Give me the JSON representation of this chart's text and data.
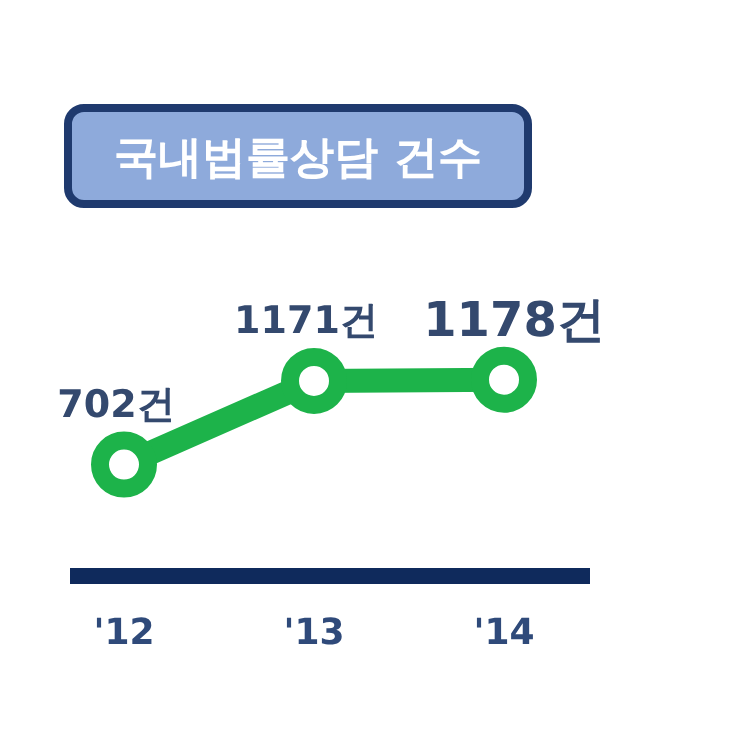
{
  "chart_data": {
    "type": "line",
    "title": "국내법률상담 건수",
    "categories": [
      "'12",
      "'13",
      "'14"
    ],
    "values": [
      702,
      1171,
      1178
    ],
    "value_labels": [
      "702건",
      "1171건",
      "1178건"
    ],
    "color": "#1db34a",
    "marker": "circle",
    "line_style": "solid"
  }
}
